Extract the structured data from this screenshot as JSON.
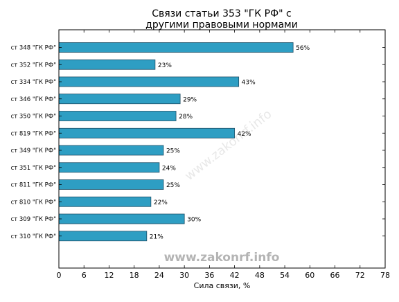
{
  "chart_data": {
    "type": "bar",
    "orientation": "horizontal",
    "title": "Связи статьи 353 \"ГК РФ\" с другими правовыми нормами",
    "title_lines": [
      "Связи статьи 353 \"ГК РФ\" с",
      "другими правовыми нормами"
    ],
    "xlabel": "Сила связи, %",
    "ylabel": "",
    "xlim": [
      0,
      78
    ],
    "x_ticks": [
      0,
      6,
      12,
      18,
      24,
      30,
      36,
      42,
      48,
      54,
      60,
      66,
      72,
      78
    ],
    "categories": [
      "ст 348 \"ГК РФ\"",
      "ст 352 \"ГК РФ\"",
      "ст 334 \"ГК РФ\"",
      "ст 346 \"ГК РФ\"",
      "ст 350 \"ГК РФ\"",
      "ст 819 \"ГК РФ\"",
      "ст 349 \"ГК РФ\"",
      "ст 351 \"ГК РФ\"",
      "ст 811 \"ГК РФ\"",
      "ст 810 \"ГК РФ\"",
      "ст 309 \"ГК РФ\"",
      "ст 310 \"ГК РФ\""
    ],
    "values": [
      56,
      23,
      43,
      29,
      28,
      42,
      25,
      24,
      25,
      22,
      30,
      21
    ],
    "value_labels": [
      "56%",
      "23%",
      "43%",
      "29%",
      "28%",
      "42%",
      "25%",
      "24%",
      "25%",
      "22%",
      "30%",
      "21%"
    ],
    "bar_color": "#2e9ec3",
    "bar_edge_color": "#1f4f66",
    "grid": false,
    "legend": "none"
  },
  "watermark": {
    "text": "www.zakonrf.info",
    "diagonal_text": "www.zakonrf.info"
  }
}
